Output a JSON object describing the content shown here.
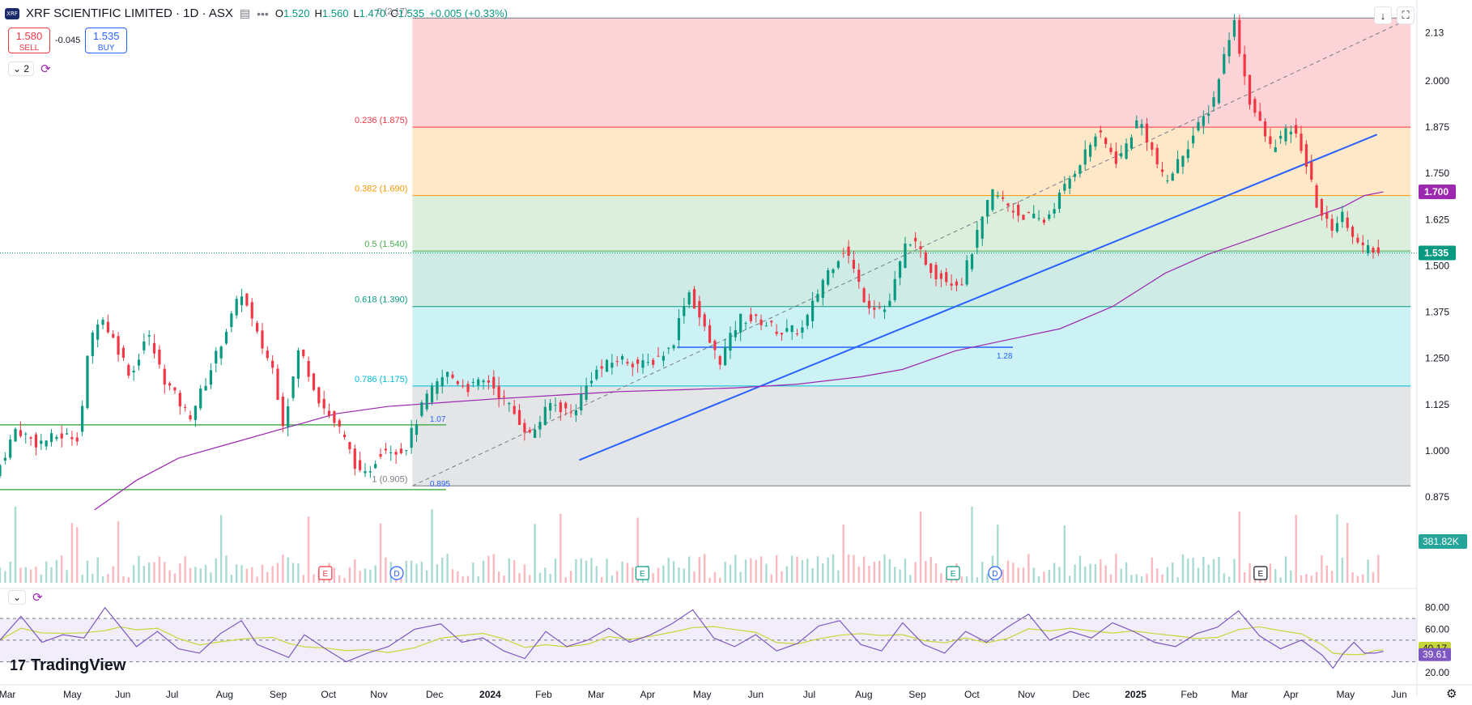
{
  "header": {
    "symbol_logo_text": "XRF",
    "title": "XRF SCIENTIFIC LIMITED · 1D · ASX",
    "eye_icon": "eye-off-icon",
    "more_icon": "more-dots-icon",
    "ohlc": [
      {
        "k": "O",
        "v": "1.520"
      },
      {
        "k": "H",
        "v": "1.560"
      },
      {
        "k": "L",
        "v": "1.470"
      },
      {
        "k": "C",
        "v": "1.535"
      },
      {
        "k": "",
        "v": "+0.005 (+0.33%)"
      }
    ]
  },
  "trade": {
    "sell_price": "1.580",
    "sell_label": "SELL",
    "spread": "-0.045",
    "buy_price": "1.535",
    "buy_label": "BUY"
  },
  "indicators": {
    "collapse_count": "2",
    "collapse_icon": "chevron-down-icon",
    "sync_icon": "refresh-icon"
  },
  "top_right": {
    "download_icon": "arrow-down-icon",
    "fullscreen_icon": "fullscreen-icon"
  },
  "branding": {
    "name": "TradingView"
  },
  "settings_icon": "gear-icon",
  "colors": {
    "up": "#089981",
    "down": "#f23645",
    "ma": "#9c27b0",
    "trend": "#2962ff",
    "rsi": "#7e57c2",
    "rsi_ma": "#c6d63a",
    "support": "#4caf50"
  },
  "chart_data": {
    "type": "candlestick",
    "symbol": "XRF",
    "timeframe": "1D",
    "exchange": "ASX",
    "x_ticks": [
      "Mar",
      "May",
      "Jun",
      "Jul",
      "Aug",
      "Sep",
      "Oct",
      "Nov",
      "Dec",
      "2024",
      "Feb",
      "Mar",
      "Apr",
      "May",
      "Jun",
      "Jul",
      "Aug",
      "Sep",
      "Oct",
      "Nov",
      "Dec",
      "2025",
      "Feb",
      "Mar",
      "Apr",
      "May",
      "Jun"
    ],
    "x_tick_values": [
      7,
      69,
      117,
      164,
      214,
      265,
      313,
      361,
      414,
      467,
      518,
      568,
      617,
      669,
      720,
      771,
      823,
      874,
      926,
      978,
      1030,
      1082,
      1133,
      1181,
      1230,
      1282,
      1333
    ],
    "x_range": [
      0,
      1350
    ],
    "y_ticks": [
      "2.13",
      "2.000",
      "1.875",
      "1.750",
      "1.625",
      "1.500",
      "1.375",
      "1.250",
      "1.125",
      "1.000",
      "0.875"
    ],
    "y_tick_values": [
      2.13,
      2.0,
      1.875,
      1.75,
      1.625,
      1.5,
      1.375,
      1.25,
      1.125,
      1.0,
      0.875
    ],
    "ylim": [
      0.84,
      2.186
    ],
    "price_path": [
      [
        0,
        0.93
      ],
      [
        20,
        1.06
      ],
      [
        40,
        1.02
      ],
      [
        60,
        1.04
      ],
      [
        80,
        1.04
      ],
      [
        90,
        1.29
      ],
      [
        100,
        1.37
      ],
      [
        115,
        1.29
      ],
      [
        130,
        1.2
      ],
      [
        145,
        1.32
      ],
      [
        160,
        1.2
      ],
      [
        185,
        1.09
      ],
      [
        200,
        1.18
      ],
      [
        215,
        1.29
      ],
      [
        235,
        1.43
      ],
      [
        250,
        1.31
      ],
      [
        265,
        1.22
      ],
      [
        275,
        1.07
      ],
      [
        290,
        1.28
      ],
      [
        310,
        1.13
      ],
      [
        330,
        1.05
      ],
      [
        350,
        0.92
      ],
      [
        370,
        1.01
      ],
      [
        390,
        1.0
      ],
      [
        410,
        1.14
      ],
      [
        430,
        1.21
      ],
      [
        450,
        1.17
      ],
      [
        470,
        1.19
      ],
      [
        490,
        1.12
      ],
      [
        510,
        1.04
      ],
      [
        530,
        1.13
      ],
      [
        550,
        1.1
      ],
      [
        570,
        1.21
      ],
      [
        595,
        1.25
      ],
      [
        620,
        1.23
      ],
      [
        645,
        1.28
      ],
      [
        660,
        1.44
      ],
      [
        680,
        1.3
      ],
      [
        690,
        1.24
      ],
      [
        710,
        1.36
      ],
      [
        730,
        1.35
      ],
      [
        750,
        1.32
      ],
      [
        770,
        1.33
      ],
      [
        790,
        1.47
      ],
      [
        810,
        1.55
      ],
      [
        830,
        1.4
      ],
      [
        850,
        1.38
      ],
      [
        870,
        1.58
      ],
      [
        895,
        1.48
      ],
      [
        920,
        1.45
      ],
      [
        950,
        1.7
      ],
      [
        975,
        1.64
      ],
      [
        1000,
        1.62
      ],
      [
        1025,
        1.74
      ],
      [
        1050,
        1.86
      ],
      [
        1070,
        1.78
      ],
      [
        1090,
        1.9
      ],
      [
        1115,
        1.72
      ],
      [
        1135,
        1.82
      ],
      [
        1160,
        1.94
      ],
      [
        1180,
        2.17
      ],
      [
        1195,
        1.95
      ],
      [
        1215,
        1.82
      ],
      [
        1235,
        1.87
      ],
      [
        1245,
        1.82
      ],
      [
        1260,
        1.66
      ],
      [
        1272,
        1.6
      ],
      [
        1285,
        1.64
      ],
      [
        1300,
        1.55
      ],
      [
        1318,
        1.535
      ]
    ],
    "moving_average": [
      [
        90,
        0.84
      ],
      [
        130,
        0.92
      ],
      [
        170,
        0.98
      ],
      [
        220,
        1.02
      ],
      [
        270,
        1.06
      ],
      [
        320,
        1.1
      ],
      [
        370,
        1.12
      ],
      [
        420,
        1.13
      ],
      [
        470,
        1.14
      ],
      [
        530,
        1.15
      ],
      [
        590,
        1.16
      ],
      [
        650,
        1.165
      ],
      [
        700,
        1.17
      ],
      [
        760,
        1.18
      ],
      [
        820,
        1.2
      ],
      [
        860,
        1.22
      ],
      [
        910,
        1.27
      ],
      [
        960,
        1.3
      ],
      [
        1010,
        1.33
      ],
      [
        1060,
        1.39
      ],
      [
        1110,
        1.48
      ],
      [
        1150,
        1.53
      ],
      [
        1200,
        1.58
      ],
      [
        1240,
        1.62
      ],
      [
        1280,
        1.66
      ],
      [
        1300,
        1.69
      ],
      [
        1318,
        1.7
      ]
    ],
    "fib_retracement": {
      "x_range": [
        393,
        1344
      ],
      "levels": [
        {
          "label": "0 (2.17)",
          "value": 2.17
        },
        {
          "label": "0.236 (1.875)",
          "value": 1.875
        },
        {
          "label": "0.382 (1.690)",
          "value": 1.69
        },
        {
          "label": "0.5 (1.540)",
          "value": 1.54
        },
        {
          "label": "0.618 (1.390)",
          "value": 1.39
        },
        {
          "label": "0.786 (1.175)",
          "value": 1.175
        },
        {
          "label": "1 (0.905)",
          "value": 0.905
        }
      ]
    },
    "trend_lines": [
      {
        "from": [
          552,
          0.975
        ],
        "to": [
          1312,
          1.855
        ],
        "color": "#2962ff"
      },
      {
        "from": [
          393,
          0.905
        ],
        "to": [
          1344,
          2.17
        ],
        "color": "#787b86",
        "dashed": true
      }
    ],
    "horizontal_lines": [
      {
        "value": 1.28,
        "from": 645,
        "to": 965,
        "label": "1.28",
        "color": "#2962ff"
      },
      {
        "value": 1.07,
        "from": 0,
        "to": 425,
        "label": "1.07",
        "color": "#4caf50"
      },
      {
        "value": 0.895,
        "from": 0,
        "to": 425,
        "label": "0.895",
        "color": "#4caf50"
      }
    ],
    "price_labels": [
      {
        "label": "1.700",
        "value": 1.7,
        "color": "#9c27b0"
      },
      {
        "label": "1.535",
        "value": 1.535,
        "color": "#089981"
      }
    ],
    "current_price": 1.535,
    "volume_label": "381.82K",
    "events": [
      {
        "x": 310,
        "label": "E",
        "color": "#f23645"
      },
      {
        "x": 378,
        "label": "D",
        "color": "#2962ff"
      },
      {
        "x": 612,
        "label": "E",
        "color": "#089981"
      },
      {
        "x": 908,
        "label": "E",
        "color": "#089981"
      },
      {
        "x": 948,
        "label": "D",
        "color": "#2962ff"
      },
      {
        "x": 1201,
        "label": "E",
        "color": "#131722"
      }
    ],
    "rsi": {
      "y_ticks": [
        "80.00",
        "60.00",
        "20.00"
      ],
      "y_tick_values": [
        80,
        60,
        20
      ],
      "ylim": [
        17,
        88
      ],
      "band": [
        30,
        70
      ],
      "midline": 50,
      "value": 39.61,
      "ma_value": 40.17,
      "value_label": "39.61",
      "ma_label": "40.17",
      "path": [
        [
          0,
          50
        ],
        [
          20,
          72
        ],
        [
          40,
          48
        ],
        [
          60,
          55
        ],
        [
          80,
          52
        ],
        [
          100,
          80
        ],
        [
          115,
          62
        ],
        [
          130,
          44
        ],
        [
          150,
          58
        ],
        [
          170,
          42
        ],
        [
          190,
          38
        ],
        [
          210,
          56
        ],
        [
          230,
          68
        ],
        [
          245,
          46
        ],
        [
          260,
          40
        ],
        [
          275,
          34
        ],
        [
          290,
          55
        ],
        [
          310,
          42
        ],
        [
          330,
          30
        ],
        [
          350,
          38
        ],
        [
          370,
          44
        ],
        [
          395,
          60
        ],
        [
          420,
          65
        ],
        [
          440,
          48
        ],
        [
          460,
          52
        ],
        [
          480,
          40
        ],
        [
          500,
          33
        ],
        [
          520,
          58
        ],
        [
          540,
          44
        ],
        [
          560,
          50
        ],
        [
          580,
          61
        ],
        [
          600,
          48
        ],
        [
          620,
          55
        ],
        [
          640,
          65
        ],
        [
          660,
          78
        ],
        [
          680,
          52
        ],
        [
          700,
          44
        ],
        [
          720,
          55
        ],
        [
          740,
          40
        ],
        [
          760,
          47
        ],
        [
          780,
          63
        ],
        [
          800,
          68
        ],
        [
          820,
          46
        ],
        [
          840,
          40
        ],
        [
          860,
          66
        ],
        [
          880,
          46
        ],
        [
          900,
          38
        ],
        [
          920,
          58
        ],
        [
          940,
          48
        ],
        [
          960,
          62
        ],
        [
          980,
          74
        ],
        [
          1000,
          50
        ],
        [
          1020,
          58
        ],
        [
          1040,
          52
        ],
        [
          1060,
          66
        ],
        [
          1080,
          58
        ],
        [
          1100,
          48
        ],
        [
          1120,
          44
        ],
        [
          1140,
          56
        ],
        [
          1160,
          62
        ],
        [
          1180,
          77
        ],
        [
          1200,
          54
        ],
        [
          1220,
          42
        ],
        [
          1240,
          50
        ],
        [
          1260,
          36
        ],
        [
          1270,
          24
        ],
        [
          1280,
          38
        ],
        [
          1290,
          48
        ],
        [
          1300,
          38
        ],
        [
          1310,
          38
        ],
        [
          1318,
          39.61
        ]
      ]
    }
  }
}
